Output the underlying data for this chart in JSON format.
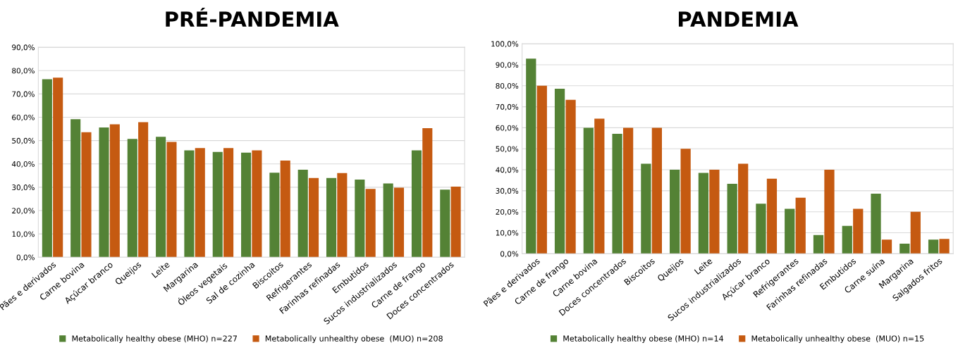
{
  "chart_data": [
    {
      "type": "bar",
      "title": "PRÉ-PANDEMIA",
      "categories": [
        "Pães e derivados",
        "Carne bovina",
        "Açúcar branco",
        "Queijos",
        "Leite",
        "Margarina",
        "Óleos vegetais",
        "Sal de cozinha",
        "Biscoitos",
        "Refrigerantes",
        "Farinhas refinadas",
        "Embutidos",
        "Sucos industrializados",
        "Carne de frango",
        "Doces concentrados"
      ],
      "series": [
        {
          "name": "Metabolically healthy obese (MHO) n=227",
          "color": "#548235",
          "values": [
            76.3,
            59.2,
            55.6,
            50.7,
            51.6,
            45.8,
            45.1,
            44.8,
            36.2,
            37.5,
            34.0,
            33.3,
            31.6,
            45.8,
            29.0
          ]
        },
        {
          "name": "Metabolically unhealthy obese  (MUO) n=208",
          "color": "#c55a11",
          "values": [
            77.0,
            53.6,
            57.0,
            57.9,
            49.4,
            46.8,
            46.8,
            45.8,
            41.4,
            34.0,
            36.1,
            29.3,
            29.8,
            55.3,
            30.3
          ]
        }
      ],
      "ylim": [
        0,
        90
      ],
      "yticks": [
        {
          "value": 0,
          "label": "0,0%"
        },
        {
          "value": 10,
          "label": "10,0%"
        },
        {
          "value": 20,
          "label": "20,0%"
        },
        {
          "value": 30,
          "label": "30,0%"
        },
        {
          "value": 40,
          "label": "40,0%"
        },
        {
          "value": 50,
          "label": "50,0%"
        },
        {
          "value": 60,
          "label": "60,0%"
        },
        {
          "value": 70,
          "label": "70,0%"
        },
        {
          "value": 80,
          "label": "80,0%"
        },
        {
          "value": 90,
          "label": "90,0%"
        }
      ],
      "grid": "y",
      "legend": "bottom"
    },
    {
      "type": "bar",
      "title": "PANDEMIA",
      "categories": [
        "Pães e derivados",
        "Carne de frango",
        "Carne bovina",
        "Doces concentrados",
        "Biscoitos",
        "Queijos",
        "Leite",
        "Sucos industrializados",
        "Açúcar branco",
        "Refrigerantes",
        "Farinhas refinadas",
        "Embutidos",
        "Carne suína",
        "Margarina",
        "Salgados fritos"
      ],
      "series": [
        {
          "name": "Metabolically healthy obese (MHO) n=14",
          "color": "#548235",
          "values": [
            92.9,
            78.6,
            60.0,
            57.1,
            42.9,
            40.0,
            38.5,
            33.3,
            23.8,
            21.4,
            8.9,
            13.3,
            28.6,
            4.8,
            6.7
          ]
        },
        {
          "name": "Metabolically unhealthy obese  (MUO) n=15",
          "color": "#c55a11",
          "values": [
            80.0,
            73.3,
            64.3,
            60.0,
            60.0,
            50.0,
            40.0,
            42.9,
            35.7,
            26.7,
            40.0,
            21.4,
            6.7,
            20.0,
            7.1
          ]
        }
      ],
      "ylim": [
        0,
        100
      ],
      "yticks": [
        {
          "value": 0,
          "label": "0,0%"
        },
        {
          "value": 10,
          "label": "10,0%"
        },
        {
          "value": 20,
          "label": "20,0%"
        },
        {
          "value": 30,
          "label": "30,0%"
        },
        {
          "value": 40,
          "label": "40,0%"
        },
        {
          "value": 50,
          "label": "50,0%"
        },
        {
          "value": 60,
          "label": "60,0%"
        },
        {
          "value": 70,
          "label": "70,0%"
        },
        {
          "value": 80,
          "label": "80,0%"
        },
        {
          "value": 90,
          "label": "90,0%"
        },
        {
          "value": 100,
          "label": "100,0%"
        }
      ],
      "grid": "y",
      "legend": "bottom"
    }
  ]
}
